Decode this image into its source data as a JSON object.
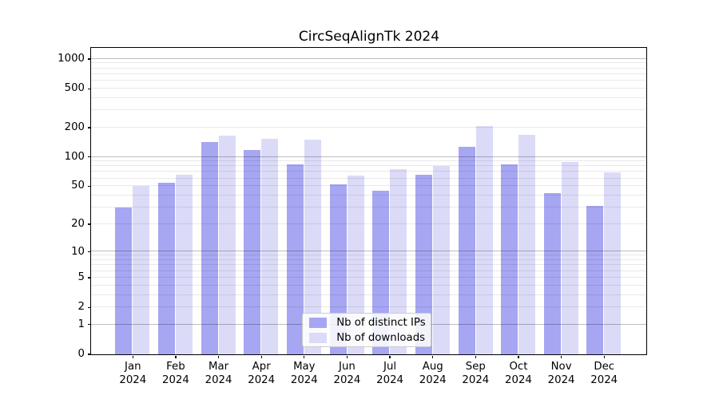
{
  "chart_data": {
    "type": "bar",
    "title": "CircSeqAlignTk 2024",
    "xlabel": "",
    "ylabel": "",
    "yscale": "log1p",
    "ylim": [
      0,
      1280
    ],
    "grid": "horizontal",
    "legend_position": "lower center",
    "year": "2024",
    "categories": [
      "Jan",
      "Feb",
      "Mar",
      "Apr",
      "May",
      "Jun",
      "Jul",
      "Aug",
      "Sep",
      "Oct",
      "Nov",
      "Dec"
    ],
    "yticks": [
      0,
      1,
      2,
      5,
      10,
      20,
      50,
      100,
      200,
      500,
      1000
    ],
    "series": [
      {
        "name": "Nb of distinct IPs",
        "color": "#a6a6f2",
        "values": [
          30,
          54,
          141,
          118,
          84,
          52,
          45,
          65,
          128,
          84,
          42,
          31
        ]
      },
      {
        "name": "Nb of downloads",
        "color": "#dbdbf8",
        "values": [
          50,
          66,
          166,
          152,
          149,
          64,
          75,
          80,
          206,
          169,
          89,
          69
        ]
      }
    ]
  },
  "colors": {
    "background": "#ffffff",
    "spine": "#000000",
    "major_grid": "#bfbfbf",
    "minor_grid": "#eaeaea",
    "legend_border": "#cccccc"
  }
}
